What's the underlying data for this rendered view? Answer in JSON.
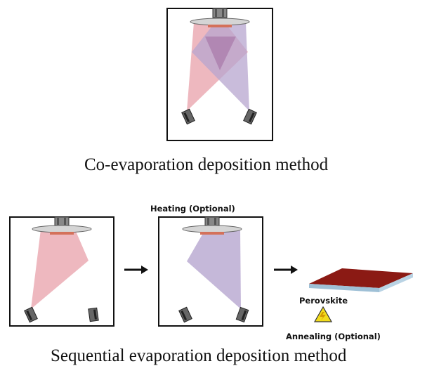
{
  "captions": {
    "co_evaporation": "Co-evaporation deposition method",
    "sequential": "Sequential evaporation deposition method"
  },
  "labels": {
    "heating": "Heating (Optional)",
    "perovskite": "Perovskite",
    "annealing": "Annealing (Optional)"
  },
  "icons": {
    "arrow": "right-arrow-icon",
    "warning": "warning-triangle-icon"
  },
  "colors": {
    "pink_beam": "#e8a0aa",
    "purple_beam": "#b7a6cf",
    "overlap": "#a06aa0",
    "substrate": "#d4715a",
    "perovskite_top": "#8b1a14",
    "perovskite_edge": "#9fc0d6",
    "warning": "#f2dc1c",
    "frame": "#111111"
  }
}
